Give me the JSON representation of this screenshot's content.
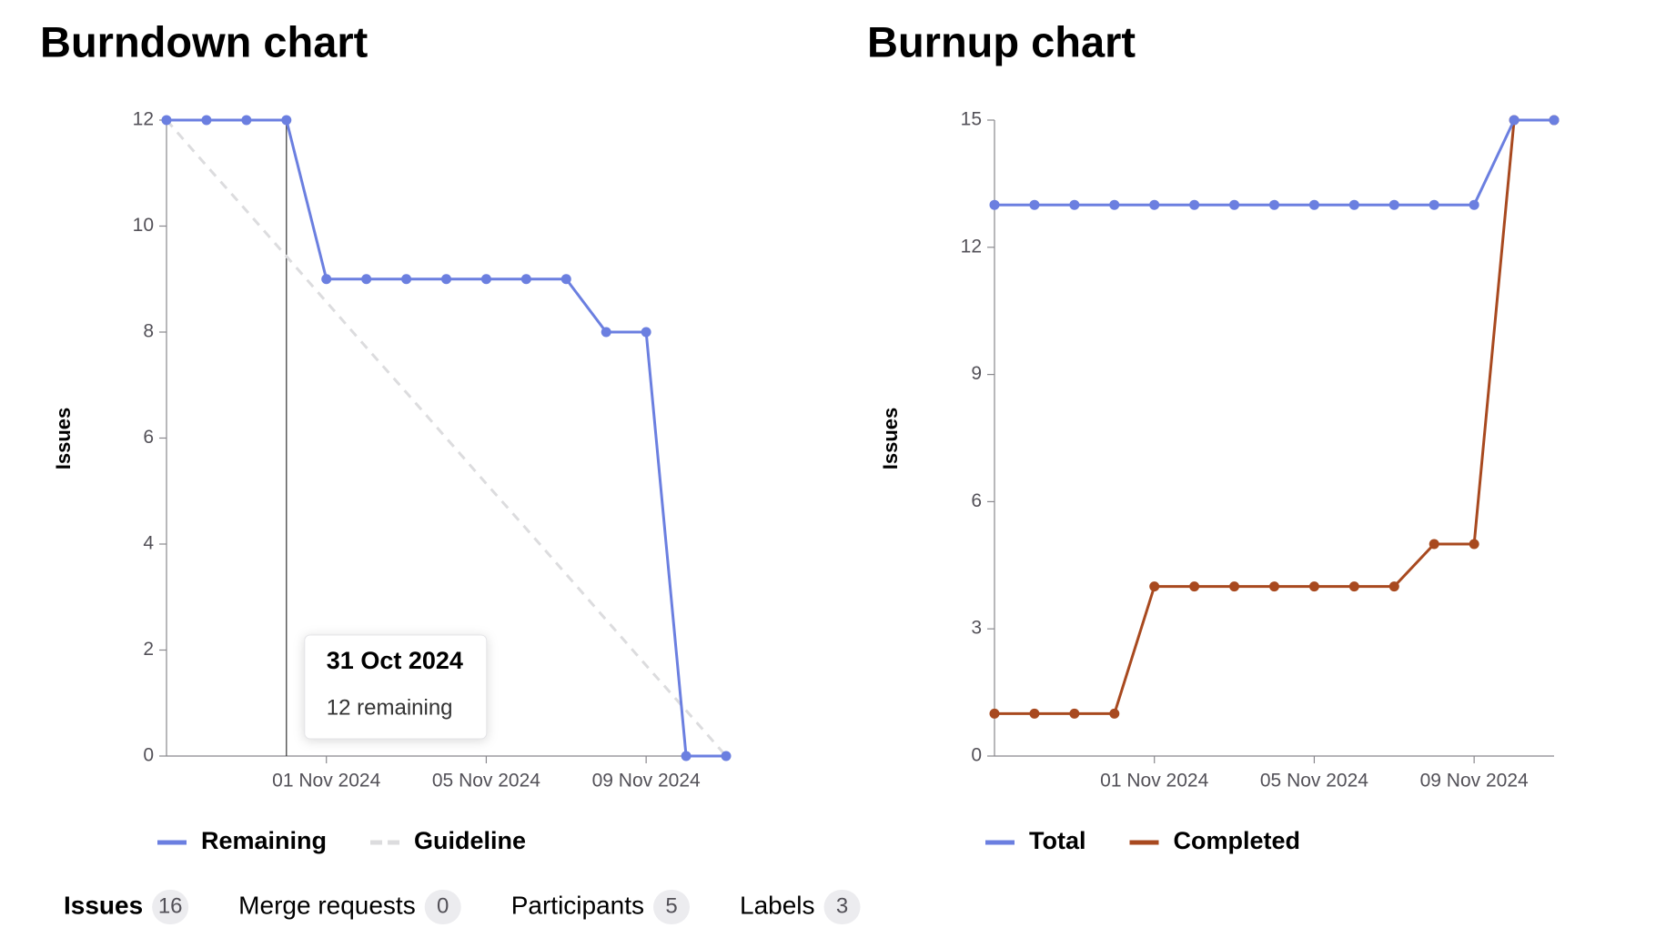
{
  "chart_data": [
    {
      "type": "line",
      "title": "Burndown chart",
      "y_label": "Issues",
      "x": [
        "28 Oct 2024",
        "29 Oct 2024",
        "30 Oct 2024",
        "31 Oct 2024",
        "01 Nov 2024",
        "02 Nov 2024",
        "03 Nov 2024",
        "04 Nov 2024",
        "05 Nov 2024",
        "06 Nov 2024",
        "07 Nov 2024",
        "08 Nov 2024",
        "09 Nov 2024",
        "10 Nov 2024",
        "11 Nov 2024"
      ],
      "xticks": [
        "01 Nov 2024",
        "05 Nov 2024",
        "09 Nov 2024"
      ],
      "ylim": [
        0,
        12
      ],
      "yticks": [
        0,
        2,
        4,
        6,
        8,
        10,
        12
      ],
      "series": [
        {
          "name": "Remaining",
          "color": "#6b7fe0",
          "values": [
            12,
            12,
            12,
            12,
            9,
            9,
            9,
            9,
            9,
            9,
            9,
            8,
            8,
            0,
            0
          ]
        },
        {
          "name": "Guideline",
          "color": "#dcdcde",
          "dashed": true,
          "values": [
            12,
            11.14,
            10.29,
            9.43,
            8.57,
            7.71,
            6.86,
            6,
            5.14,
            4.29,
            3.43,
            2.57,
            1.71,
            0.86,
            0
          ]
        }
      ],
      "tooltip": {
        "title": "31 Oct 2024",
        "text": "12 remaining"
      }
    },
    {
      "type": "line",
      "title": "Burnup chart",
      "y_label": "Issues",
      "x": [
        "28 Oct 2024",
        "29 Oct 2024",
        "30 Oct 2024",
        "31 Oct 2024",
        "01 Nov 2024",
        "02 Nov 2024",
        "03 Nov 2024",
        "04 Nov 2024",
        "05 Nov 2024",
        "06 Nov 2024",
        "07 Nov 2024",
        "08 Nov 2024",
        "09 Nov 2024",
        "10 Nov 2024",
        "11 Nov 2024"
      ],
      "xticks": [
        "01 Nov 2024",
        "05 Nov 2024",
        "09 Nov 2024"
      ],
      "ylim": [
        0,
        15
      ],
      "yticks": [
        0,
        3,
        6,
        9,
        12,
        15
      ],
      "series": [
        {
          "name": "Total",
          "color": "#6b7fe0",
          "values": [
            13,
            13,
            13,
            13,
            13,
            13,
            13,
            13,
            13,
            13,
            13,
            13,
            13,
            15,
            15
          ]
        },
        {
          "name": "Completed",
          "color": "#a8491f",
          "values": [
            1,
            1,
            1,
            1,
            4,
            4,
            4,
            4,
            4,
            4,
            4,
            5,
            5,
            15,
            15
          ]
        }
      ]
    }
  ],
  "tabs": [
    {
      "label": "Issues",
      "count": 16
    },
    {
      "label": "Merge requests",
      "count": 0
    },
    {
      "label": "Participants",
      "count": 5
    },
    {
      "label": "Labels",
      "count": 3
    }
  ]
}
